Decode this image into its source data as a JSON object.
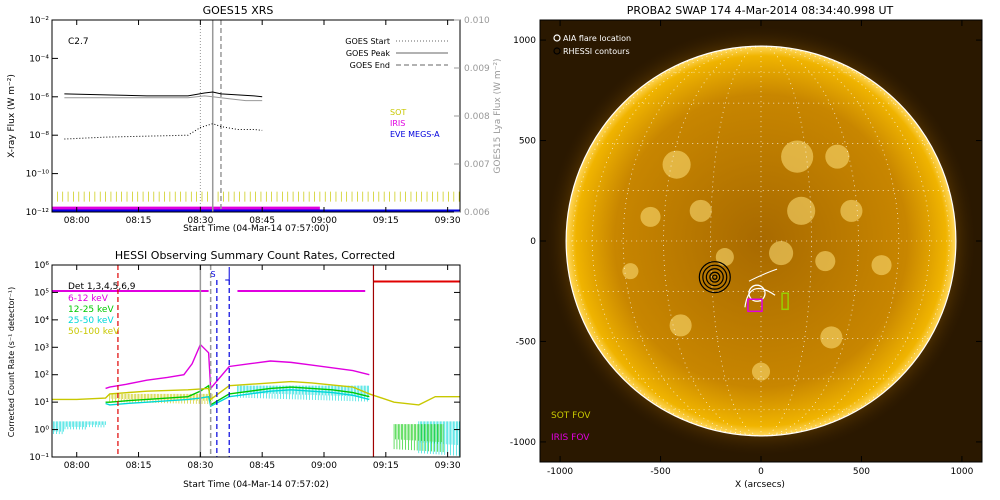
{
  "chart_data": [
    {
      "type": "line",
      "title": "GOES15 XRS",
      "xlabel": "Start Time (04-Mar-14 07:57:00)",
      "ylabel": "X-ray Flux (W m⁻²)",
      "y2label": "GOES15 Lya Flux (W m⁻²)",
      "x_ticks": [
        "08:00",
        "08:15",
        "08:30",
        "08:45",
        "09:00",
        "09:15",
        "09:30"
      ],
      "y_ticks": [
        "10⁻²",
        "10⁻⁴",
        "10⁻⁶",
        "10⁻⁸",
        "10⁻¹⁰",
        "10⁻¹²"
      ],
      "y2_ticks": [
        "0.010",
        "0.009",
        "0.008",
        "0.007",
        "0.006"
      ],
      "y_scale": "log",
      "ylim_exp": [
        -12,
        -2
      ],
      "y2lim": [
        0.006,
        0.01
      ],
      "xlim_min": [
        -3,
        96
      ],
      "flare_class_label": "C2.7",
      "legend": [
        {
          "label": "GOES Start",
          "style": "dotted",
          "color": "#999999"
        },
        {
          "label": "GOES Peak",
          "style": "solid",
          "color": "#999999"
        },
        {
          "label": "GOES End",
          "style": "dashed",
          "color": "#999999"
        }
      ],
      "coverage_legend": [
        {
          "label": "SOT",
          "color": "#c8c800"
        },
        {
          "label": "IRIS",
          "color": "#e000e0"
        },
        {
          "label": "EVE MEGS-A",
          "color": "#0000dd"
        }
      ],
      "event_lines_min": {
        "start": 33,
        "peak": 36,
        "end": 38
      },
      "series": [
        {
          "color": "#000000",
          "style": "solid",
          "x": [
            0,
            10,
            20,
            30,
            34,
            36,
            38,
            42,
            46,
            48
          ],
          "y_exp": [
            -5.85,
            -5.9,
            -5.95,
            -5.95,
            -5.8,
            -5.75,
            -5.85,
            -5.9,
            -5.95,
            -6.0
          ]
        },
        {
          "color": "#999999",
          "style": "solid",
          "x": [
            0,
            10,
            20,
            30,
            34,
            36,
            40,
            44,
            48
          ],
          "y_exp": [
            -6.05,
            -6.05,
            -6.05,
            -6.05,
            -5.95,
            -6.0,
            -6.1,
            -6.2,
            -6.2
          ]
        },
        {
          "color": "#000000",
          "style": "dotted",
          "x": [
            0,
            10,
            20,
            30,
            33,
            36,
            38,
            42,
            46,
            48
          ],
          "y_exp": [
            -8.2,
            -8.1,
            -8.05,
            -8.0,
            -7.6,
            -7.4,
            -7.55,
            -7.7,
            -7.7,
            -7.75
          ]
        }
      ],
      "coverage_bars": [
        {
          "instrument": "SOT",
          "start_min": -3,
          "end_min": 96,
          "y_exp": -11.2
        },
        {
          "instrument": "IRIS",
          "start_min": -3,
          "end_min": 62,
          "y_exp": -11.8
        },
        {
          "instrument": "EVE MEGS-A",
          "start_min": -3,
          "end_min": 96,
          "y_exp": -11.95
        }
      ]
    },
    {
      "type": "line",
      "title": "HESSI Observing Summary Count Rates, Corrected",
      "xlabel": "Start Time (04-Mar-14 07:57:02)",
      "ylabel": "Corrected Count Rate (s⁻¹ detector⁻¹)",
      "x_ticks": [
        "08:00",
        "08:15",
        "08:30",
        "08:45",
        "09:00",
        "09:15",
        "09:30"
      ],
      "y_ticks": [
        "10⁶",
        "10⁵",
        "10⁴",
        "10³",
        "10²",
        "10¹",
        "10⁰",
        "10⁻¹"
      ],
      "y_scale": "log",
      "ylim_exp": [
        -1,
        6
      ],
      "xlim_min": [
        -3,
        96
      ],
      "legend_title": "Det 1,3,4,5,6,9",
      "s_label": "S",
      "bands": [
        {
          "name": "6-12 keV",
          "color": "#e000e0"
        },
        {
          "name": "12-25 keV",
          "color": "#00c800"
        },
        {
          "name": "25-50 keV",
          "color": "#00d8d8"
        },
        {
          "name": "50-100 keV",
          "color": "#c8c800"
        }
      ],
      "series": [
        {
          "name": "6-12 keV",
          "color": "#e000e0",
          "x": [
            10,
            11,
            15,
            20,
            25,
            29,
            31,
            33,
            35,
            35.5,
            40,
            45,
            50,
            55,
            60,
            65,
            70,
            74
          ],
          "y_exp": [
            1.5,
            1.55,
            1.65,
            1.8,
            1.9,
            2.0,
            2.4,
            3.1,
            2.8,
            1.5,
            2.3,
            2.4,
            2.5,
            2.45,
            2.35,
            2.25,
            2.15,
            2.0
          ]
        },
        {
          "name": "12-25 keV",
          "color": "#00c800",
          "x": [
            10,
            11,
            15,
            20,
            25,
            30,
            33,
            35,
            35.5,
            40,
            45,
            50,
            55,
            60,
            65,
            70,
            74
          ],
          "y_exp": [
            1.0,
            1.0,
            1.05,
            1.1,
            1.15,
            1.2,
            1.4,
            1.6,
            0.9,
            1.3,
            1.4,
            1.5,
            1.55,
            1.5,
            1.45,
            1.35,
            1.2
          ]
        },
        {
          "name": "25-50 keV",
          "color": "#00d8d8",
          "x": [
            10,
            11,
            15,
            20,
            25,
            30,
            33,
            35,
            35.5,
            40,
            45,
            50,
            55,
            60,
            65,
            70,
            74
          ],
          "y_exp": [
            0.95,
            0.9,
            0.95,
            1.0,
            1.05,
            1.1,
            1.15,
            1.2,
            0.85,
            1.2,
            1.3,
            1.4,
            1.45,
            1.4,
            1.35,
            1.25,
            1.1
          ]
        },
        {
          "name": "50-100 keV",
          "color": "#c8c800",
          "x": [
            -3,
            3,
            10,
            11,
            20,
            30,
            35,
            35.5,
            40,
            50,
            55,
            60,
            70,
            74,
            80,
            86,
            90,
            96
          ],
          "y_exp": [
            1.1,
            1.1,
            1.15,
            1.3,
            1.4,
            1.45,
            1.5,
            1.1,
            1.6,
            1.7,
            1.75,
            1.7,
            1.55,
            1.3,
            1.0,
            0.9,
            1.2,
            1.2
          ]
        }
      ],
      "attenuator_segments": [
        {
          "start_min": -3,
          "end_min": 35,
          "y_exp": 5.05
        },
        {
          "start_min": 42,
          "end_min": 73,
          "y_exp": 5.05
        },
        {
          "start_min": 75,
          "end_min": 96,
          "y_exp": 5.4
        }
      ],
      "event_lines_min": {
        "red_dashed": 13,
        "gray_solid": 33,
        "gray_dashed": 35.5,
        "blue_dashed_1": 37,
        "blue_dashed_2": 40,
        "red_solid": 75
      }
    },
    {
      "type": "scatter",
      "title": "PROBA2 SWAP 174   4-Mar-2014 08:34:40.998 UT",
      "xlabel": "X (arcsecs)",
      "ylabel": "",
      "x_ticks": [
        -1000,
        -500,
        0,
        500,
        1000
      ],
      "y_ticks": [
        1000,
        500,
        0,
        -500,
        -1000
      ],
      "xlim": [
        -1100,
        1100
      ],
      "ylim": [
        -1100,
        1100
      ],
      "solar_radius": 970,
      "legend": [
        {
          "label": "AIA flare location",
          "symbol": "circle-open",
          "color": "#ffffff"
        },
        {
          "label": "RHESSI contours",
          "symbol": "circle-open",
          "color": "#000000"
        }
      ],
      "fov_labels": [
        {
          "label": "SOT FOV",
          "color": "#c8c800"
        },
        {
          "label": "IRIS FOV",
          "color": "#e000e0"
        }
      ],
      "features": {
        "aia_flare_location": {
          "x": -20,
          "y": -260
        },
        "rhessi_contour_center": {
          "x": -230,
          "y": -180
        },
        "iris_fov": {
          "x": -30,
          "y": -320,
          "width": 70,
          "height": 60
        },
        "sot_fov": {
          "x": 120,
          "y": -300,
          "width": 30,
          "height": 80
        }
      }
    }
  ]
}
